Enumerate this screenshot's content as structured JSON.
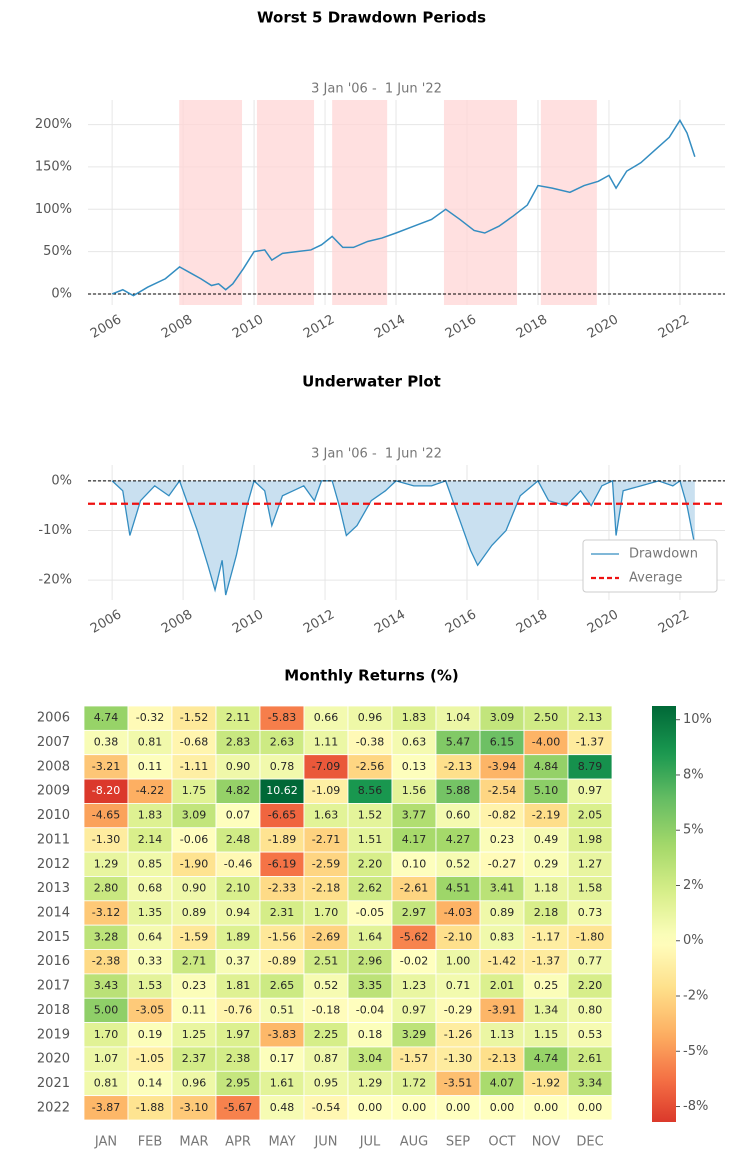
{
  "chart_data": [
    {
      "type": "line",
      "title": "Worst 5 Drawdown Periods",
      "subtitle": "3 Jan '06 -  1 Jun '22",
      "x": [
        2006.0,
        2006.3,
        2006.6,
        2007.0,
        2007.5,
        2007.9,
        2008.2,
        2008.5,
        2008.8,
        2009.0,
        2009.2,
        2009.4,
        2009.7,
        2010.0,
        2010.3,
        2010.5,
        2010.8,
        2011.2,
        2011.6,
        2011.9,
        2012.2,
        2012.5,
        2012.8,
        2013.2,
        2013.6,
        2014.0,
        2014.5,
        2015.0,
        2015.4,
        2015.8,
        2016.2,
        2016.5,
        2016.9,
        2017.3,
        2017.7,
        2018.0,
        2018.4,
        2018.9,
        2019.3,
        2019.7,
        2020.0,
        2020.2,
        2020.5,
        2020.9,
        2021.3,
        2021.7,
        2022.0,
        2022.2,
        2022.42
      ],
      "series": [
        {
          "color": "#348dc1",
          "values": [
            0,
            5,
            -2,
            8,
            18,
            32,
            25,
            18,
            10,
            12,
            5,
            12,
            30,
            50,
            52,
            40,
            48,
            50,
            52,
            58,
            68,
            55,
            55,
            62,
            66,
            72,
            80,
            88,
            100,
            88,
            75,
            72,
            80,
            92,
            105,
            128,
            125,
            120,
            128,
            133,
            140,
            125,
            145,
            155,
            170,
            185,
            205,
            190,
            162
          ]
        }
      ],
      "shaded_spans": [
        [
          2007.89,
          2009.66
        ],
        [
          2010.08,
          2011.69
        ],
        [
          2012.2,
          2013.75
        ],
        [
          2015.35,
          2017.41
        ],
        [
          2018.08,
          2019.66
        ]
      ],
      "span_color": "#ffd6d6",
      "hlines": [
        {
          "value": 0,
          "color": "#000000"
        }
      ],
      "xlim": [
        2005.32,
        2023.27
      ],
      "xticks": [
        2006,
        2008,
        2010,
        2012,
        2014,
        2016,
        2018,
        2020,
        2022
      ],
      "ylim": [
        -13,
        229
      ],
      "yticks": [
        {
          "value": 0,
          "label": "0%"
        },
        {
          "value": 50,
          "label": "50%"
        },
        {
          "value": 100,
          "label": "100%"
        },
        {
          "value": 150,
          "label": "150%"
        },
        {
          "value": 200,
          "label": "200%"
        }
      ],
      "grid": true
    },
    {
      "type": "area",
      "title": "Underwater Plot",
      "subtitle": "3 Jan '06 -  1 Jun '22",
      "x": [
        2006.0,
        2006.3,
        2006.5,
        2006.8,
        2007.2,
        2007.6,
        2007.9,
        2008.1,
        2008.4,
        2008.7,
        2008.9,
        2009.1,
        2009.2,
        2009.5,
        2009.8,
        2010.0,
        2010.3,
        2010.5,
        2010.8,
        2011.1,
        2011.4,
        2011.7,
        2011.9,
        2012.2,
        2012.4,
        2012.6,
        2012.9,
        2013.3,
        2013.7,
        2014.0,
        2014.5,
        2015.0,
        2015.4,
        2015.8,
        2016.1,
        2016.3,
        2016.7,
        2017.1,
        2017.5,
        2018.0,
        2018.3,
        2018.8,
        2019.2,
        2019.5,
        2019.8,
        2020.1,
        2020.2,
        2020.4,
        2020.9,
        2021.4,
        2021.8,
        2022.0,
        2022.2,
        2022.42
      ],
      "series": [
        {
          "name": "Drawdown",
          "color": "#348dc1",
          "fill": "#c9e0f0",
          "values": [
            0,
            -2,
            -11,
            -4,
            -1,
            -3,
            0,
            -4,
            -10,
            -17,
            -22,
            -16,
            -23,
            -15,
            -5,
            0,
            -2,
            -9,
            -3,
            -2,
            -1,
            -4,
            0,
            0,
            -5,
            -11,
            -9,
            -4,
            -2,
            0,
            -1,
            -1,
            0,
            -8,
            -14,
            -17,
            -13,
            -10,
            -3,
            0,
            -4,
            -5,
            -2,
            -5,
            -1,
            0,
            -11,
            -2,
            -1,
            0,
            -1,
            0,
            -5,
            -13
          ]
        }
      ],
      "hlines": [
        {
          "value": 0,
          "color": "#000000"
        },
        {
          "name": "Average",
          "value": -4.6,
          "color": "#ee1111"
        }
      ],
      "xlim": [
        2005.32,
        2023.27
      ],
      "xticks": [
        2006,
        2008,
        2010,
        2012,
        2014,
        2016,
        2018,
        2020,
        2022
      ],
      "ylim": [
        -24,
        3.2
      ],
      "yticks": [
        {
          "value": 0,
          "label": "0%"
        },
        {
          "value": -10,
          "label": "-10%"
        },
        {
          "value": -20,
          "label": "-20%"
        }
      ],
      "grid": true,
      "legend": "lower right"
    },
    {
      "type": "heatmap",
      "title": "Monthly Returns (%)",
      "x_categories": [
        "JAN",
        "FEB",
        "MAR",
        "APR",
        "MAY",
        "JUN",
        "JUL",
        "AUG",
        "SEP",
        "OCT",
        "NOV",
        "DEC"
      ],
      "y_categories": [
        "2006",
        "2007",
        "2008",
        "2009",
        "2010",
        "2011",
        "2012",
        "2013",
        "2014",
        "2015",
        "2016",
        "2017",
        "2018",
        "2019",
        "2020",
        "2021",
        "2022"
      ],
      "values": [
        [
          4.74,
          -0.32,
          -1.52,
          2.11,
          -5.83,
          0.66,
          0.96,
          1.83,
          1.04,
          3.09,
          2.5,
          2.13
        ],
        [
          0.38,
          0.81,
          -0.68,
          2.83,
          2.63,
          1.11,
          -0.38,
          0.63,
          5.47,
          6.15,
          -4.0,
          -1.37
        ],
        [
          -3.21,
          0.11,
          -1.11,
          0.9,
          0.78,
          -7.09,
          -2.56,
          0.13,
          -2.13,
          -3.94,
          4.84,
          8.79
        ],
        [
          -8.2,
          -4.22,
          1.75,
          4.82,
          10.62,
          -1.09,
          8.56,
          1.56,
          5.88,
          -2.54,
          5.1,
          0.97
        ],
        [
          -4.65,
          1.83,
          3.09,
          0.07,
          -6.65,
          1.63,
          1.52,
          3.77,
          0.6,
          -0.82,
          -2.19,
          2.05
        ],
        [
          -1.3,
          2.14,
          -0.06,
          2.48,
          -1.89,
          -2.71,
          1.51,
          4.17,
          4.27,
          0.23,
          0.49,
          1.98
        ],
        [
          1.29,
          0.85,
          -1.9,
          -0.46,
          -6.19,
          -2.59,
          2.2,
          0.1,
          0.52,
          -0.27,
          0.29,
          1.27
        ],
        [
          2.8,
          0.68,
          0.9,
          2.1,
          -2.33,
          -2.18,
          2.62,
          -2.61,
          4.51,
          3.41,
          1.18,
          1.58
        ],
        [
          -3.12,
          1.35,
          0.89,
          0.94,
          2.31,
          1.7,
          -0.05,
          2.97,
          -4.03,
          0.89,
          2.18,
          0.73
        ],
        [
          3.28,
          0.64,
          -1.59,
          1.89,
          -1.56,
          -2.69,
          1.64,
          -5.62,
          -2.1,
          0.83,
          -1.17,
          -1.8
        ],
        [
          -2.38,
          0.33,
          2.71,
          0.37,
          -0.89,
          2.51,
          2.96,
          -0.02,
          1.0,
          -1.42,
          -1.37,
          0.77
        ],
        [
          3.43,
          1.53,
          0.23,
          1.81,
          2.65,
          0.52,
          3.35,
          1.23,
          0.71,
          2.01,
          0.25,
          2.2
        ],
        [
          5.0,
          -3.05,
          0.11,
          -0.76,
          0.51,
          -0.18,
          -0.04,
          0.97,
          -0.29,
          -3.91,
          1.34,
          0.8
        ],
        [
          1.7,
          0.19,
          1.25,
          1.97,
          -3.83,
          2.25,
          0.18,
          3.29,
          -1.26,
          1.13,
          1.15,
          0.53
        ],
        [
          1.07,
          -1.05,
          2.37,
          2.38,
          0.17,
          0.87,
          3.04,
          -1.57,
          -1.3,
          -2.13,
          4.74,
          2.61
        ],
        [
          0.81,
          0.14,
          0.96,
          2.95,
          1.61,
          0.95,
          1.29,
          1.72,
          -3.51,
          4.07,
          -1.92,
          3.34
        ],
        [
          -3.87,
          -1.88,
          -3.1,
          -5.67,
          0.48,
          -0.54,
          0,
          0,
          0,
          0,
          0,
          0
        ]
      ],
      "value_labels": [
        [
          "4.74",
          "-0.32",
          "-1.52",
          "2.11",
          "-5.83",
          "0.66",
          "0.96",
          "1.83",
          "1.04",
          "3.09",
          "2.50",
          "2.13"
        ],
        [
          "0.38",
          "0.81",
          "-0.68",
          "2.83",
          "2.63",
          "1.11",
          "-0.38",
          "0.63",
          "5.47",
          "6.15",
          "-4.00",
          "-1.37"
        ],
        [
          "-3.21",
          "0.11",
          "-1.11",
          "0.90",
          "0.78",
          "-7.09",
          "-2.56",
          "0.13",
          "-2.13",
          "-3.94",
          "4.84",
          "8.79"
        ],
        [
          "-8.20",
          "-4.22",
          "1.75",
          "4.82",
          "10.62",
          "-1.09",
          "8.56",
          "1.56",
          "5.88",
          "-2.54",
          "5.10",
          "0.97"
        ],
        [
          "-4.65",
          "1.83",
          "3.09",
          "0.07",
          "-6.65",
          "1.63",
          "1.52",
          "3.77",
          "0.60",
          "-0.82",
          "-2.19",
          "2.05"
        ],
        [
          "-1.30",
          "2.14",
          "-0.06",
          "2.48",
          "-1.89",
          "-2.71",
          "1.51",
          "4.17",
          "4.27",
          "0.23",
          "0.49",
          "1.98"
        ],
        [
          "1.29",
          "0.85",
          "-1.90",
          "-0.46",
          "-6.19",
          "-2.59",
          "2.20",
          "0.10",
          "0.52",
          "-0.27",
          "0.29",
          "1.27"
        ],
        [
          "2.80",
          "0.68",
          "0.90",
          "2.10",
          "-2.33",
          "-2.18",
          "2.62",
          "-2.61",
          "4.51",
          "3.41",
          "1.18",
          "1.58"
        ],
        [
          "-3.12",
          "1.35",
          "0.89",
          "0.94",
          "2.31",
          "1.70",
          "-0.05",
          "2.97",
          "-4.03",
          "0.89",
          "2.18",
          "0.73"
        ],
        [
          "3.28",
          "0.64",
          "-1.59",
          "1.89",
          "-1.56",
          "-2.69",
          "1.64",
          "-5.62",
          "-2.10",
          "0.83",
          "-1.17",
          "-1.80"
        ],
        [
          "-2.38",
          "0.33",
          "2.71",
          "0.37",
          "-0.89",
          "2.51",
          "2.96",
          "-0.02",
          "1.00",
          "-1.42",
          "-1.37",
          "0.77"
        ],
        [
          "3.43",
          "1.53",
          "0.23",
          "1.81",
          "2.65",
          "0.52",
          "3.35",
          "1.23",
          "0.71",
          "2.01",
          "0.25",
          "2.20"
        ],
        [
          "5.00",
          "-3.05",
          "0.11",
          "-0.76",
          "0.51",
          "-0.18",
          "-0.04",
          "0.97",
          "-0.29",
          "-3.91",
          "1.34",
          "0.80"
        ],
        [
          "1.70",
          "0.19",
          "1.25",
          "1.97",
          "-3.83",
          "2.25",
          "0.18",
          "3.29",
          "-1.26",
          "1.13",
          "1.15",
          "0.53"
        ],
        [
          "1.07",
          "-1.05",
          "2.37",
          "2.38",
          "0.17",
          "0.87",
          "3.04",
          "-1.57",
          "-1.30",
          "-2.13",
          "4.74",
          "2.61"
        ],
        [
          "0.81",
          "0.14",
          "0.96",
          "2.95",
          "1.61",
          "0.95",
          "1.29",
          "1.72",
          "-3.51",
          "4.07",
          "-1.92",
          "3.34"
        ],
        [
          "-3.87",
          "-1.88",
          "-3.10",
          "-5.67",
          "0.48",
          "-0.54",
          "0.00",
          "0.00",
          "0.00",
          "0.00",
          "0.00",
          "0.00"
        ]
      ],
      "colormap": [
        "#a50026",
        "#d73027",
        "#f46d43",
        "#fdae61",
        "#fee08b",
        "#ffffbf",
        "#d9ef8b",
        "#a6d96a",
        "#66bd63",
        "#1a9850",
        "#006837"
      ],
      "clim": [
        -8.2,
        10.62
      ],
      "center": 0,
      "colorbar_ticks": [
        {
          "value": 10,
          "label": "10%"
        },
        {
          "value": 7.5,
          "label": "8%"
        },
        {
          "value": 5,
          "label": "5%"
        },
        {
          "value": 2.5,
          "label": "2%"
        },
        {
          "value": 0,
          "label": "0%"
        },
        {
          "value": -2.5,
          "label": "-2%"
        },
        {
          "value": -5,
          "label": "-5%"
        },
        {
          "value": -7.5,
          "label": "-8%"
        }
      ]
    }
  ]
}
